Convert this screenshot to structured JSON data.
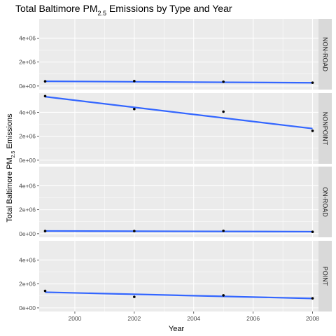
{
  "chart_data": {
    "type": "line",
    "title": {
      "prefix": "Total Baltimore  PM",
      "sub": "2.5",
      "suffix": " Emissions by Type and Year"
    },
    "xlabel": "Year",
    "ylabel": {
      "prefix": "Total Baltimore PM",
      "sub": "2.5",
      "suffix": " Emissions"
    },
    "xlim": [
      1998.8,
      2008.2
    ],
    "ylim": [
      -300000,
      5600000
    ],
    "x_ticks": [
      2000,
      2002,
      2004,
      2006,
      2008
    ],
    "y_ticks": [
      0,
      2000000,
      4000000
    ],
    "y_tick_labels": [
      "0e+00",
      "2e+06",
      "4e+06"
    ],
    "grid": true,
    "colors": {
      "panel": "#ebebeb",
      "grid_major": "#ffffff",
      "strip": "#d9d9d9",
      "trend": "#3366ff",
      "point": "#000000"
    },
    "facets": [
      {
        "name": "NON-ROAD",
        "x": [
          1999,
          2002,
          2005,
          2008
        ],
        "y": [
          390000,
          410000,
          355000,
          275000
        ],
        "trend": [
          [
            1999,
            395000
          ],
          [
            2008,
            270000
          ]
        ]
      },
      {
        "name": "NONPOINT",
        "x": [
          1999,
          2002,
          2005,
          2008
        ],
        "y": [
          5350000,
          4270000,
          4050000,
          2450000
        ],
        "trend": [
          [
            1999,
            5300000
          ],
          [
            2008,
            2640000
          ]
        ]
      },
      {
        "name": "ON-ROAD",
        "x": [
          1999,
          2002,
          2005,
          2008
        ],
        "y": [
          220000,
          220000,
          240000,
          155000
        ],
        "trend": [
          [
            1999,
            230000
          ],
          [
            2008,
            170000
          ]
        ]
      },
      {
        "name": "POINT",
        "x": [
          1999,
          2002,
          2005,
          2008
        ],
        "y": [
          1420000,
          920000,
          1050000,
          800000
        ],
        "trend": [
          [
            1999,
            1310000
          ],
          [
            2008,
            790000
          ]
        ]
      }
    ]
  }
}
